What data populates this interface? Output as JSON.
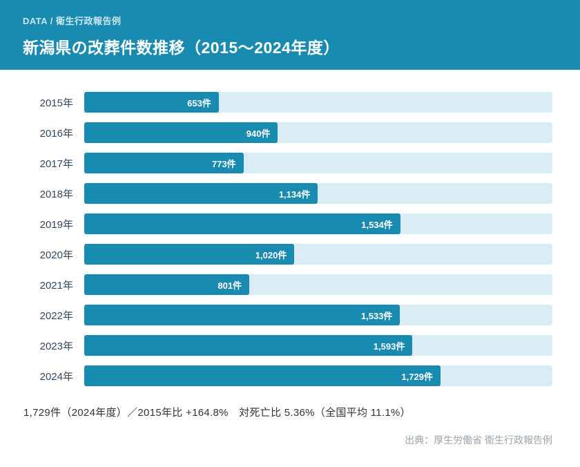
{
  "accent_color": "#1a8bb0",
  "track_color": "#daedf7",
  "header": {
    "kicker": "DATA / 衛生行政報告例",
    "title": "新潟県の改葬件数推移（2015～2024年度）"
  },
  "chart_data": {
    "type": "bar",
    "orientation": "horizontal",
    "title": "新潟県の改葬件数推移（2015～2024年度）",
    "categories": [
      "2015年",
      "2016年",
      "2017年",
      "2018年",
      "2019年",
      "2020年",
      "2021年",
      "2022年",
      "2023年",
      "2024年"
    ],
    "values": [
      653,
      940,
      773,
      1134,
      1534,
      1020,
      801,
      1533,
      1593,
      1729
    ],
    "value_labels": [
      "653件",
      "940件",
      "773件",
      "1,134件",
      "1,534件",
      "1,020件",
      "801件",
      "1,533件",
      "1,593件",
      "1,729件"
    ],
    "unit": "件",
    "xlim": [
      0,
      2272
    ],
    "grid": false,
    "legend": false,
    "bar_color": "#1a8bb0",
    "track_color": "#daedf7"
  },
  "summary": "1,729件（2024年度）／2015年比 +164.8%　対死亡比 5.36%（全国平均 11.1%）",
  "source": "出典：厚生労働省 衛生行政報告例"
}
